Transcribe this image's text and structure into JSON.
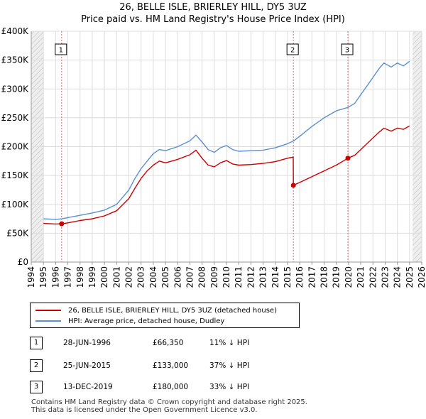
{
  "title_line1": "26, BELLE ISLE, BRIERLEY HILL, DY5 3UZ",
  "title_line2": "Price paid vs. HM Land Registry's House Price Index (HPI)",
  "legend": {
    "series1": "26, BELLE ISLE, BRIERLEY HILL, DY5 3UZ (detached house)",
    "series2": "HPI: Average price, detached house, Dudley"
  },
  "colors": {
    "property": "#cc0000",
    "hpi": "#5b8fd0"
  },
  "sales": [
    {
      "num": "1",
      "date": "28-JUN-1996",
      "price": "£66,350",
      "hpi": "11% ↓ HPI"
    },
    {
      "num": "2",
      "date": "25-JUN-2015",
      "price": "£133,000",
      "hpi": "37% ↓ HPI"
    },
    {
      "num": "3",
      "date": "13-DEC-2019",
      "price": "£180,000",
      "hpi": "33% ↓ HPI"
    }
  ],
  "footer_line1": "Contains HM Land Registry data © Crown copyright and database right 2025.",
  "footer_line2": "This data is licensed under the Open Government Licence v3.0.",
  "chart_data": {
    "type": "line",
    "title": "26, BELLE ISLE, BRIERLEY HILL, DY5 3UZ — Price paid vs. HM Land Registry's House Price Index (HPI)",
    "xlabel": "",
    "ylabel": "",
    "xlim": [
      1994,
      2026
    ],
    "ylim": [
      0,
      400000
    ],
    "x_ticks": [
      "1994",
      "1995",
      "1996",
      "1997",
      "1998",
      "1999",
      "2000",
      "2001",
      "2002",
      "2003",
      "2004",
      "2005",
      "2006",
      "2007",
      "2008",
      "2009",
      "2010",
      "2011",
      "2012",
      "2013",
      "2014",
      "2015",
      "2016",
      "2017",
      "2018",
      "2019",
      "2020",
      "2021",
      "2022",
      "2023",
      "2024",
      "2025",
      "2026"
    ],
    "y_ticks": [
      {
        "value": 0,
        "label": "£0"
      },
      {
        "value": 50000,
        "label": "£50K"
      },
      {
        "value": 100000,
        "label": "£100K"
      },
      {
        "value": 150000,
        "label": "£150K"
      },
      {
        "value": 200000,
        "label": "£200K"
      },
      {
        "value": 250000,
        "label": "£250K"
      },
      {
        "value": 300000,
        "label": "£300K"
      },
      {
        "value": 350000,
        "label": "£350K"
      },
      {
        "value": 400000,
        "label": "£400K"
      }
    ],
    "data_start": 1995.0,
    "data_end": 2025.25,
    "series": [
      {
        "name": "HPI: Average price, detached house, Dudley",
        "x": [
          1995.0,
          1996.0,
          1996.5,
          1997.0,
          1998.0,
          1999.0,
          2000.0,
          2001.0,
          2002.0,
          2002.5,
          2003.0,
          2003.5,
          2004.0,
          2004.5,
          2005.0,
          2006.0,
          2007.0,
          2007.5,
          2008.0,
          2008.5,
          2009.0,
          2009.5,
          2010.0,
          2010.5,
          2011.0,
          2012.0,
          2013.0,
          2014.0,
          2015.0,
          2015.5,
          2016.0,
          2017.0,
          2018.0,
          2019.0,
          2019.95,
          2020.5,
          2021.0,
          2021.5,
          2022.0,
          2022.5,
          2022.9,
          2023.5,
          2024.0,
          2024.5,
          2025.0
        ],
        "values": [
          75000,
          74000,
          75000,
          77000,
          81000,
          85000,
          90000,
          100000,
          125000,
          145000,
          162000,
          175000,
          188000,
          195000,
          193000,
          200000,
          210000,
          220000,
          208000,
          195000,
          190000,
          198000,
          202000,
          195000,
          192000,
          193000,
          194000,
          198000,
          205000,
          210000,
          218000,
          235000,
          250000,
          262000,
          268000,
          275000,
          290000,
          305000,
          320000,
          335000,
          345000,
          338000,
          345000,
          340000,
          348000
        ]
      },
      {
        "name": "26, BELLE ISLE, BRIERLEY HILL, DY5 3UZ (detached house)",
        "x": [
          1995.0,
          1996.0,
          1996.49,
          1997.0,
          1998.0,
          1999.0,
          2000.0,
          2001.0,
          2002.0,
          2002.5,
          2003.0,
          2003.5,
          2004.0,
          2004.5,
          2005.0,
          2006.0,
          2007.0,
          2007.5,
          2008.0,
          2008.5,
          2009.0,
          2009.5,
          2010.0,
          2010.5,
          2011.0,
          2012.0,
          2013.0,
          2014.0,
          2015.0,
          2015.47,
          2015.48,
          2016.0,
          2017.0,
          2018.0,
          2019.0,
          2019.95,
          2020.5,
          2021.0,
          2021.5,
          2022.0,
          2022.5,
          2022.9,
          2023.5,
          2024.0,
          2024.5,
          2025.0
        ],
        "values": [
          67000,
          66000,
          66350,
          68000,
          72000,
          75000,
          80000,
          89000,
          110000,
          128000,
          145000,
          158000,
          168000,
          175000,
          172000,
          178000,
          186000,
          194000,
          180000,
          168000,
          165000,
          172000,
          176000,
          170000,
          168000,
          169000,
          171000,
          174000,
          180000,
          182000,
          133000,
          138000,
          148000,
          158000,
          168000,
          180000,
          185000,
          195000,
          205000,
          215000,
          225000,
          232000,
          227000,
          232000,
          230000,
          236000
        ]
      }
    ],
    "vlines": [
      1996.49,
      2015.48,
      2019.95
    ],
    "markers": [
      {
        "label": "1",
        "x": 1996.49,
        "y": 66350
      },
      {
        "label": "2",
        "x": 2015.48,
        "y": 133000
      },
      {
        "label": "3",
        "x": 2019.95,
        "y": 180000
      }
    ],
    "legend_position": "bottom-left"
  }
}
